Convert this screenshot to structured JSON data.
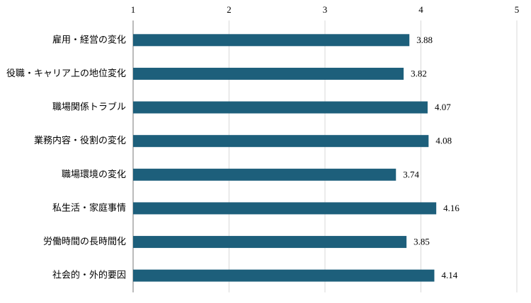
{
  "chart_data": {
    "type": "bar",
    "orientation": "horizontal",
    "categories": [
      "雇用・経営の変化",
      "役職・キャリア上の地位変化",
      "職場関係トラブル",
      "業務内容・役割の変化",
      "職場環境の変化",
      "私生活・家庭事情",
      "労働時間の長時間化",
      "社会的・外的要因"
    ],
    "values": [
      3.88,
      3.82,
      4.07,
      4.08,
      3.74,
      4.16,
      3.85,
      4.14
    ],
    "color": "#1d5f7b",
    "xlim": [
      1,
      5
    ],
    "xticks": [
      1,
      2,
      3,
      4,
      5
    ],
    "grid": true
  }
}
